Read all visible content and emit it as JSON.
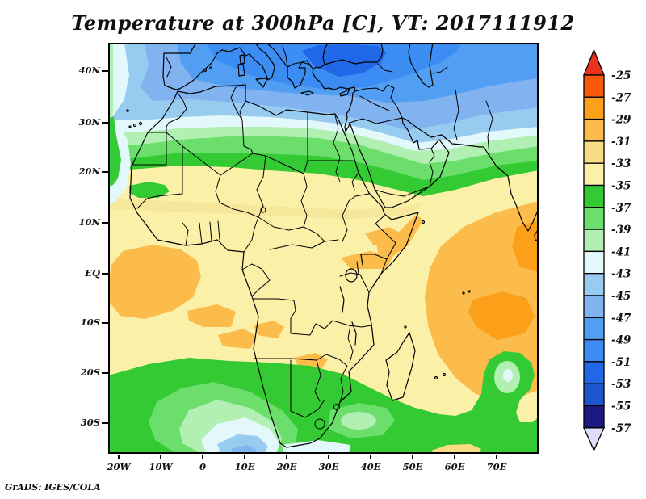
{
  "title": "Temperature at 300hPa [C], VT: 2017111912",
  "credit": "GrADS: IGES/COLA",
  "axes": {
    "y_ticks": [
      "40N",
      "30N",
      "20N",
      "10N",
      "EQ",
      "10S",
      "20S",
      "30S"
    ],
    "x_ticks": [
      "20W",
      "10W",
      "0",
      "10E",
      "20E",
      "30E",
      "40E",
      "50E",
      "60E",
      "70E"
    ]
  },
  "colorbar": {
    "labels": [
      "-25",
      "-27",
      "-29",
      "-31",
      "-33",
      "-35",
      "-37",
      "-39",
      "-41",
      "-43",
      "-45",
      "-47",
      "-49",
      "-51",
      "-53",
      "-55",
      "-57"
    ],
    "cell_colors": [
      "#f85a0a",
      "#fba018",
      "#fbbc4b",
      "#f9dc84",
      "#faf0a8",
      "#33ca33",
      "#6bde6b",
      "#b2efb2",
      "#e2f8fb",
      "#98cbf0",
      "#81b3f1",
      "#519ef3",
      "#3b8df3",
      "#2168e9",
      "#1d56ce",
      "#1a1a80"
    ],
    "above_color": "#e8321e",
    "below_color": "#dedef8"
  },
  "chart_data": {
    "type": "heatmap",
    "title": "Temperature at 300hPa [C], VT: 2017111912",
    "variable": "Temperature",
    "pressure_level_hPa": 300,
    "units": "C",
    "valid_time": "2017111912",
    "x_ticks": [
      "20W",
      "10W",
      "0",
      "10E",
      "20E",
      "30E",
      "40E",
      "50E",
      "60E",
      "70E"
    ],
    "y_ticks": [
      "40N",
      "30N",
      "20N",
      "10N",
      "EQ",
      "10S",
      "20S",
      "30S"
    ],
    "lon_range_deg": [
      -22.5,
      80
    ],
    "lat_range_deg": [
      -36,
      45.4
    ],
    "contour_interval_C": 2,
    "scale_range_C": [
      -57,
      -25
    ],
    "palette_warm_to_cold": {
      "upper_bounds_C": [
        -25,
        -27,
        -29,
        -31,
        -33,
        -35,
        -37,
        -39,
        -41,
        -43,
        -45,
        -47,
        -49,
        -51,
        -53,
        -55,
        -57
      ],
      "colors": [
        "#e8321e",
        "#f85a0a",
        "#fba018",
        "#fbbc4b",
        "#f9dc84",
        "#faf0a8",
        "#33ca33",
        "#6bde6b",
        "#b2efb2",
        "#e2f8fb",
        "#98cbf0",
        "#81b3f1",
        "#519ef3",
        "#3b8df3",
        "#2168e9",
        "#1d56ce",
        "#1a1a80",
        "#dedef8"
      ]
    },
    "approx_zonal_mean_C": [
      {
        "lat": "45N",
        "value": -48
      },
      {
        "lat": "40N",
        "value": -46
      },
      {
        "lat": "35N",
        "value": -44
      },
      {
        "lat": "30N",
        "value": -42
      },
      {
        "lat": "25N",
        "value": -38
      },
      {
        "lat": "20N",
        "value": -35
      },
      {
        "lat": "15N",
        "value": -33.5
      },
      {
        "lat": "10N",
        "value": -33
      },
      {
        "lat": "EQ",
        "value": -32.5
      },
      {
        "lat": "10S",
        "value": -32.5
      },
      {
        "lat": "15S",
        "value": -33
      },
      {
        "lat": "20S",
        "value": -34.5
      },
      {
        "lat": "25S",
        "value": -36
      },
      {
        "lat": "30S",
        "value": -37.5
      },
      {
        "lat": "35S",
        "value": -40
      }
    ],
    "features": [
      {
        "region": "Anatolia / Black Sea (25E-45E, 38-45N)",
        "value_C": -52,
        "note": "coldest core, dark blue"
      },
      {
        "region": "Mediterranean belt (30-40N)",
        "value_C": -45,
        "note": "mid blue band"
      },
      {
        "region": "Sahara green belt (18-27N)",
        "value_C": -36,
        "note": "green transition band"
      },
      {
        "region": "Senegal patch (17W-8W, 14-17N)",
        "value_C": -36,
        "note": "small green patch"
      },
      {
        "region": "Tropical Atlantic near EQ (20W-0E)",
        "value_C": -31.5,
        "note": "orange warm pool"
      },
      {
        "region": "East Africa near EQ (30-43E)",
        "value_C": -31.5,
        "note": "orange patches"
      },
      {
        "region": "Western Indian Ocean (45-80E, 5N-20S)",
        "value_C": -30.5,
        "note": "large orange warm pool"
      },
      {
        "region": "Indian Ocean core (55-75E, 10-18S)",
        "value_C": -29,
        "note": "deeper orange spots"
      },
      {
        "region": "Subtropical southern belt (20S-36S)",
        "value_C": -36.5,
        "note": "broad green band"
      },
      {
        "region": "SW of Cape Town (5W-10E, 32-36S)",
        "value_C": -43,
        "note": "pale cyan / light blue cold pocket"
      },
      {
        "region": "Indian Ocean eddy (60-67E, 22-28S)",
        "value_C": -39,
        "note": "green blob with pale green center"
      }
    ]
  }
}
